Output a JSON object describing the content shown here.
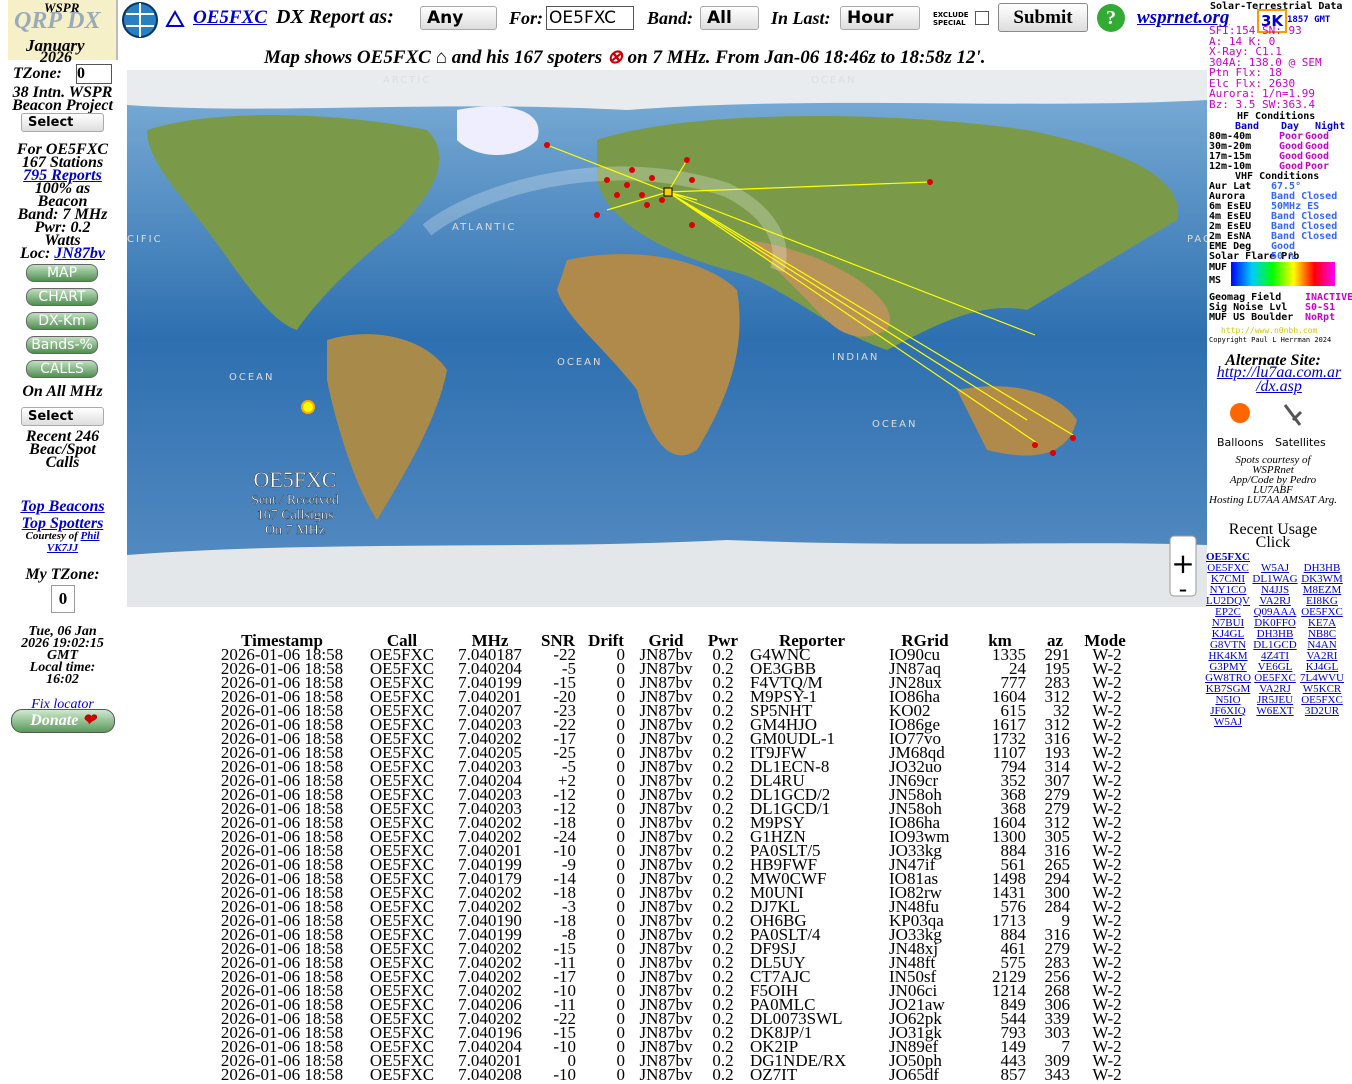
{
  "header": {
    "logo_top": "WSPR",
    "logo": "QRP DX",
    "month": "January",
    "year": "2026",
    "call_link": "OE5FXC",
    "report_label": "DX Report as:",
    "report_select": "Any",
    "for_label": "For:",
    "for_value": "OE5FXC",
    "band_label": "Band:",
    "band_select": "All",
    "last_label": "In Last:",
    "last_select": "Hour",
    "exclude": [
      "EXCLUDE",
      "SPECIAL"
    ],
    "submit": "Submit",
    "help": "?",
    "site": "wsprnet.org"
  },
  "map": {
    "caption": [
      "Map shows OE5FXC",
      "and his 167 spoters",
      "on 7 MHz. From Jan-06 18:46z to 18:58z 12'."
    ],
    "labels": [
      "ARCTIC",
      "OCEAN",
      "ATLANTIC",
      "INDIAN",
      "OCEAN",
      "OCEAN",
      "OCEAN",
      "CIFIC",
      "PACI"
    ],
    "overlay": [
      "OE5FXC",
      "Sent / Received",
      "167 Callsigns",
      "On 7 MHz"
    ],
    "zoom_in": "+",
    "zoom_out": "-"
  },
  "sidebar": {
    "tzone_label": "TZone:",
    "tzone_value": "0",
    "project": [
      "38 Intn. WSPR",
      "Beacon Project"
    ],
    "select1": "Select",
    "for": "For OE5FXC",
    "stations": "167 Stations",
    "reports": "795 Reports",
    "beacon": [
      "100% as",
      "Beacon"
    ],
    "band": "Band: 7 MHz",
    "pwr": [
      "Pwr: 0.2",
      "Watts"
    ],
    "loc_label": "Loc:",
    "loc": "JN87bv",
    "buttons": [
      "MAP",
      "CHART",
      "DX-Km",
      "Bands-%",
      "CALLS"
    ],
    "all_mhz": "On All MHz",
    "select2": "Select",
    "recent": [
      "Recent 246",
      "Beac/Spot",
      "Calls"
    ],
    "top_beacons": "Top Beacons",
    "top_spotters": "Top Spotters",
    "courtesy": "Courtesy of",
    "phil": "Phil",
    "vk7jj": "VK7JJ",
    "my_tz": "My TZone:",
    "my_tz_value": "0",
    "date": [
      "Tue, 06 Jan",
      "2026 19:02:15",
      "GMT"
    ],
    "local_label": "Local time:",
    "local": "16:02",
    "fix": "Fix locator",
    "donate": "Donate"
  },
  "solar": {
    "title": "Solar-Terrestrial Data",
    "badge": "3K",
    "time": "1857 GMT",
    "lines": [
      "SFI:154 SN: 93",
      "A: 14 K: 0",
      "X-Ray: C1.1",
      "304A: 138.0 @ SEM",
      "Ptn Flx: 18",
      "Elc Flx: 2630",
      "Aurora: 1/n=1.99",
      "Bz: 3.5 SW:363.4"
    ],
    "hf_title": "HF Conditions",
    "hf_head": [
      "Band",
      "Day",
      "Night"
    ],
    "hf_rows": [
      [
        "80m-40m",
        "Poor",
        "Good"
      ],
      [
        "30m-20m",
        "Good",
        "Good"
      ],
      [
        "17m-15m",
        "Good",
        "Good"
      ],
      [
        "12m-10m",
        "Good",
        "Poor"
      ]
    ],
    "vhf_title": "VHF Conditions",
    "vhf_rows": [
      [
        "Aur Lat",
        "67.5°"
      ],
      [
        "Aurora",
        "Band Closed"
      ],
      [
        "6m EsEU",
        "50MHz ES"
      ],
      [
        "4m EsEU",
        "Band Closed"
      ],
      [
        "2m EsEU",
        "Band Closed"
      ],
      [
        "2m EsNA",
        "Band Closed"
      ],
      [
        "EME Deg",
        "Good"
      ],
      [
        "Solar Flare Prb",
        "50 %"
      ]
    ],
    "muf": "MUF",
    "ms": "MS",
    "geo": [
      [
        "Geomag Field",
        "INACTIVE"
      ],
      [
        "Sig Noise Lvl",
        "S0-S1"
      ],
      [
        "MUF US Boulder",
        "NoRpt"
      ]
    ],
    "url": "http://www.n0nbh.com",
    "copy": "Copyright Paul L Herrman 2024"
  },
  "right": {
    "alt": "Alternate Site:",
    "alt_url": [
      "http://lu7aa.com.ar",
      "/dx.asp"
    ],
    "balloons": "Balloons",
    "satellites": "Satellites",
    "credits": [
      "Spots courtesy of",
      "WSPRnet",
      "App/Code by Pedro",
      "LU7ABF",
      "Hosting LU7AA AMSAT Arg."
    ]
  },
  "recent": {
    "title": "Recent Usage",
    "subtitle": "Click",
    "header": "OE5FXC",
    "calls": [
      "OE5FXC",
      "W5AJ",
      "DH3HB",
      "K7CMI",
      "DL1WAG",
      "DK3WM",
      "NY1CO",
      "N4JJS",
      "M8EZM",
      "LU2DQV",
      "VA2RJ",
      "EI8KG",
      "EP2C",
      "Q09AAA",
      "OE5FXC",
      "N7BUI",
      "DK0FFO",
      "KE7A",
      "KJ4GL",
      "DH3HB",
      "NB8C",
      "G8VTN",
      "DL1GCD",
      "N4AN",
      "HK4KM",
      "4Z4TI",
      "VA2RI",
      "G3PMY",
      "VE6GL",
      "KJ4GL",
      "GW8TRO",
      "OE5FXC",
      "7L4WVU",
      "KB7SGM",
      "VA2RJ",
      "W5KCR",
      "N5IO",
      "JR5JEU",
      "OE5FXC",
      "JF6XIQ",
      "W6EXT",
      "3D2UR",
      "W5AJ"
    ]
  },
  "table": {
    "columns": [
      "Timestamp",
      "Call",
      "MHz",
      "SNR",
      "Drift",
      "Grid",
      "Pwr",
      "Reporter",
      "RGrid",
      "km",
      "az",
      "Mode"
    ],
    "rows": [
      [
        "2026-01-06 18:58",
        "OE5FXC",
        "7.040187",
        "-22",
        "0",
        "JN87bv",
        "0.2",
        "G4WNC",
        "IO90cu",
        "1335",
        "291",
        "W-2"
      ],
      [
        "2026-01-06 18:58",
        "OE5FXC",
        "7.040204",
        "-5",
        "0",
        "JN87bv",
        "0.2",
        "OE3GBB",
        "JN87aq",
        "24",
        "195",
        "W-2"
      ],
      [
        "2026-01-06 18:58",
        "OE5FXC",
        "7.040199",
        "-15",
        "0",
        "JN87bv",
        "0.2",
        "F4VTQ/M",
        "JN28ux",
        "777",
        "283",
        "W-2"
      ],
      [
        "2026-01-06 18:58",
        "OE5FXC",
        "7.040201",
        "-20",
        "0",
        "JN87bv",
        "0.2",
        "M9PSY-1",
        "IO86ha",
        "1604",
        "312",
        "W-2"
      ],
      [
        "2026-01-06 18:58",
        "OE5FXC",
        "7.040207",
        "-23",
        "0",
        "JN87bv",
        "0.2",
        "SP5NHT",
        "KO02",
        "615",
        "32",
        "W-2"
      ],
      [
        "2026-01-06 18:58",
        "OE5FXC",
        "7.040203",
        "-22",
        "0",
        "JN87bv",
        "0.2",
        "GM4HJO",
        "IO86ge",
        "1617",
        "312",
        "W-2"
      ],
      [
        "2026-01-06 18:58",
        "OE5FXC",
        "7.040202",
        "-17",
        "0",
        "JN87bv",
        "0.2",
        "GM0UDL-1",
        "IO77vo",
        "1732",
        "316",
        "W-2"
      ],
      [
        "2026-01-06 18:58",
        "OE5FXC",
        "7.040205",
        "-25",
        "0",
        "JN87bv",
        "0.2",
        "IT9JFW",
        "JM68qd",
        "1107",
        "193",
        "W-2"
      ],
      [
        "2026-01-06 18:58",
        "OE5FXC",
        "7.040203",
        "-5",
        "0",
        "JN87bv",
        "0.2",
        "DL1ECN-8",
        "JO32uo",
        "794",
        "314",
        "W-2"
      ],
      [
        "2026-01-06 18:58",
        "OE5FXC",
        "7.040204",
        "+2",
        "0",
        "JN87bv",
        "0.2",
        "DL4RU",
        "JN69cr",
        "352",
        "307",
        "W-2"
      ],
      [
        "2026-01-06 18:58",
        "OE5FXC",
        "7.040203",
        "-12",
        "0",
        "JN87bv",
        "0.2",
        "DL1GCD/2",
        "JN58oh",
        "368",
        "279",
        "W-2"
      ],
      [
        "2026-01-06 18:58",
        "OE5FXC",
        "7.040203",
        "-12",
        "0",
        "JN87bv",
        "0.2",
        "DL1GCD/1",
        "JN58oh",
        "368",
        "279",
        "W-2"
      ],
      [
        "2026-01-06 18:58",
        "OE5FXC",
        "7.040202",
        "-18",
        "0",
        "JN87bv",
        "0.2",
        "M9PSY",
        "IO86ha",
        "1604",
        "312",
        "W-2"
      ],
      [
        "2026-01-06 18:58",
        "OE5FXC",
        "7.040202",
        "-24",
        "0",
        "JN87bv",
        "0.2",
        "G1HZN",
        "IO93wm",
        "1300",
        "305",
        "W-2"
      ],
      [
        "2026-01-06 18:58",
        "OE5FXC",
        "7.040201",
        "-10",
        "0",
        "JN87bv",
        "0.2",
        "PA0SLT/5",
        "JO33kg",
        "884",
        "316",
        "W-2"
      ],
      [
        "2026-01-06 18:58",
        "OE5FXC",
        "7.040199",
        "-9",
        "0",
        "JN87bv",
        "0.2",
        "HB9FWF",
        "JN47if",
        "561",
        "265",
        "W-2"
      ],
      [
        "2026-01-06 18:58",
        "OE5FXC",
        "7.040179",
        "-14",
        "0",
        "JN87bv",
        "0.2",
        "MW0CWF",
        "IO81as",
        "1498",
        "294",
        "W-2"
      ],
      [
        "2026-01-06 18:58",
        "OE5FXC",
        "7.040202",
        "-18",
        "0",
        "JN87bv",
        "0.2",
        "M0UNI",
        "IO82rw",
        "1431",
        "300",
        "W-2"
      ],
      [
        "2026-01-06 18:58",
        "OE5FXC",
        "7.040202",
        "-3",
        "0",
        "JN87bv",
        "0.2",
        "DJ7KL",
        "JN48fu",
        "576",
        "284",
        "W-2"
      ],
      [
        "2026-01-06 18:58",
        "OE5FXC",
        "7.040190",
        "-18",
        "0",
        "JN87bv",
        "0.2",
        "OH6BG",
        "KP03qa",
        "1713",
        "9",
        "W-2"
      ],
      [
        "2026-01-06 18:58",
        "OE5FXC",
        "7.040199",
        "-8",
        "0",
        "JN87bv",
        "0.2",
        "PA0SLT/4",
        "JO33kg",
        "884",
        "316",
        "W-2"
      ],
      [
        "2026-01-06 18:58",
        "OE5FXC",
        "7.040202",
        "-15",
        "0",
        "JN87bv",
        "0.2",
        "DF9SJ",
        "JN48xj",
        "461",
        "279",
        "W-2"
      ],
      [
        "2026-01-06 18:58",
        "OE5FXC",
        "7.040202",
        "-11",
        "0",
        "JN87bv",
        "0.2",
        "DL5UY",
        "JN48ft",
        "575",
        "283",
        "W-2"
      ],
      [
        "2026-01-06 18:58",
        "OE5FXC",
        "7.040202",
        "-17",
        "0",
        "JN87bv",
        "0.2",
        "CT7AJC",
        "IN50sf",
        "2129",
        "256",
        "W-2"
      ],
      [
        "2026-01-06 18:58",
        "OE5FXC",
        "7.040202",
        "-10",
        "0",
        "JN87bv",
        "0.2",
        "F5OIH",
        "JN06ci",
        "1214",
        "268",
        "W-2"
      ],
      [
        "2026-01-06 18:58",
        "OE5FXC",
        "7.040206",
        "-11",
        "0",
        "JN87bv",
        "0.2",
        "PA0MLC",
        "JO21aw",
        "849",
        "306",
        "W-2"
      ],
      [
        "2026-01-06 18:58",
        "OE5FXC",
        "7.040202",
        "-22",
        "0",
        "JN87bv",
        "0.2",
        "DL0073SWL",
        "JO62pk",
        "544",
        "339",
        "W-2"
      ],
      [
        "2026-01-06 18:58",
        "OE5FXC",
        "7.040196",
        "-15",
        "0",
        "JN87bv",
        "0.2",
        "DK8JP/1",
        "JO31gk",
        "793",
        "303",
        "W-2"
      ],
      [
        "2026-01-06 18:58",
        "OE5FXC",
        "7.040204",
        "-10",
        "0",
        "JN87bv",
        "0.2",
        "OK2IP",
        "JN89ef",
        "149",
        "7",
        "W-2"
      ],
      [
        "2026-01-06 18:58",
        "OE5FXC",
        "7.040201",
        "0",
        "0",
        "JN87bv",
        "0.2",
        "DG1NDE/RX",
        "JO50ph",
        "443",
        "309",
        "W-2"
      ],
      [
        "2026-01-06 18:58",
        "OE5FXC",
        "7.040208",
        "-10",
        "0",
        "JN87bv",
        "0.2",
        "OZ7IT",
        "JO65df",
        "857",
        "343",
        "W-2"
      ]
    ]
  }
}
